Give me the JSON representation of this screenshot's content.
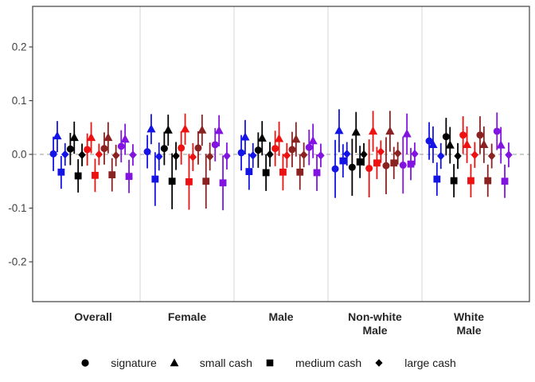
{
  "figure": {
    "background": "#ffffff",
    "panel_border_color": "#4d4d4d",
    "separator_color": "#dcdcdc",
    "zero_line_color": "#999999",
    "tick_color": "#333333",
    "axis_text_color": "#404040",
    "category_text_color": "#262626"
  },
  "legend": {
    "marker_color": "#000000",
    "items": [
      {
        "shape": "circle",
        "label": "signature"
      },
      {
        "shape": "triangle",
        "label": "small cash"
      },
      {
        "shape": "square",
        "label": "medium cash"
      },
      {
        "shape": "diamond",
        "label": "large cash"
      }
    ]
  },
  "chart_data": {
    "type": "scatter",
    "subtype": "dodged point-range (coefficient plot, no caps on error bars)",
    "title": "",
    "xlabel": "",
    "ylabel": "",
    "ylim": [
      -0.27,
      0.275
    ],
    "yticks": [
      0.2,
      0.1,
      0,
      -0.1,
      -0.2
    ],
    "zero_reference_line": 0,
    "grid": "vertical light-gray separators between categories; dashed gray horizontal line at 0",
    "legend_position": "bottom-center",
    "categories": [
      "Overall",
      "Female",
      "Male",
      "Non-white Male",
      "White Male"
    ],
    "category_label_lines": [
      [
        "Overall"
      ],
      [
        "Female"
      ],
      [
        "Male"
      ],
      [
        "Non-white",
        "Male"
      ],
      [
        "White",
        "Male"
      ]
    ],
    "shape_order": [
      "circle",
      "triangle",
      "square",
      "diamond"
    ],
    "shape_labels": {
      "circle": "signature",
      "triangle": "small cash",
      "square": "medium cash",
      "diamond": "large cash"
    },
    "color_order": [
      "#1414e6",
      "#000000",
      "#ee1111",
      "#8b2222",
      "#8214e0"
    ],
    "point_format": [
      "estimate",
      "ci_low",
      "ci_high"
    ],
    "panels": [
      {
        "category": "Overall",
        "series": [
          {
            "color": "#1414e6",
            "points": [
              [
                0.001,
                -0.031,
                0.033
              ],
              [
                0.034,
                0.004,
                0.062
              ],
              [
                -0.033,
                -0.064,
                -0.003
              ],
              [
                0.0,
                -0.021,
                0.021
              ]
            ]
          },
          {
            "color": "#000000",
            "points": [
              [
                0.01,
                -0.02,
                0.04
              ],
              [
                0.031,
                0.001,
                0.061
              ],
              [
                -0.04,
                -0.071,
                -0.009
              ],
              [
                -0.001,
                -0.022,
                0.02
              ]
            ]
          },
          {
            "color": "#ee1111",
            "points": [
              [
                0.009,
                -0.021,
                0.039
              ],
              [
                0.031,
                0.002,
                0.06
              ],
              [
                -0.039,
                -0.07,
                -0.008
              ],
              [
                0.0,
                -0.02,
                0.02
              ]
            ]
          },
          {
            "color": "#8b2222",
            "points": [
              [
                0.011,
                -0.019,
                0.041
              ],
              [
                0.031,
                0.002,
                0.06
              ],
              [
                -0.038,
                -0.069,
                -0.007
              ],
              [
                -0.002,
                -0.022,
                0.018
              ]
            ]
          },
          {
            "color": "#8214e0",
            "points": [
              [
                0.015,
                -0.015,
                0.045
              ],
              [
                0.028,
                -0.001,
                0.057
              ],
              [
                -0.041,
                -0.072,
                -0.01
              ],
              [
                -0.001,
                -0.021,
                0.019
              ]
            ]
          }
        ]
      },
      {
        "category": "Female",
        "series": [
          {
            "color": "#1414e6",
            "points": [
              [
                0.005,
                -0.026,
                0.036
              ],
              [
                0.047,
                0.019,
                0.075
              ],
              [
                -0.046,
                -0.096,
                0.004
              ],
              [
                -0.004,
                -0.03,
                0.022
              ]
            ]
          },
          {
            "color": "#000000",
            "points": [
              [
                0.011,
                -0.02,
                0.042
              ],
              [
                0.045,
                0.016,
                0.074
              ],
              [
                -0.05,
                -0.102,
                0.002
              ],
              [
                -0.003,
                -0.029,
                0.023
              ]
            ]
          },
          {
            "color": "#ee1111",
            "points": [
              [
                0.012,
                -0.019,
                0.043
              ],
              [
                0.047,
                0.018,
                0.076
              ],
              [
                -0.051,
                -0.103,
                0.001
              ],
              [
                -0.005,
                -0.031,
                0.021
              ]
            ]
          },
          {
            "color": "#8b2222",
            "points": [
              [
                0.012,
                -0.019,
                0.043
              ],
              [
                0.045,
                0.016,
                0.074
              ],
              [
                -0.05,
                -0.101,
                0.001
              ],
              [
                -0.004,
                -0.03,
                0.022
              ]
            ]
          },
          {
            "color": "#8214e0",
            "points": [
              [
                0.018,
                -0.013,
                0.049
              ],
              [
                0.044,
                0.015,
                0.073
              ],
              [
                -0.053,
                -0.104,
                -0.002
              ],
              [
                -0.003,
                -0.028,
                0.022
              ]
            ]
          }
        ]
      },
      {
        "category": "Male",
        "series": [
          {
            "color": "#1414e6",
            "points": [
              [
                0.003,
                -0.03,
                0.036
              ],
              [
                0.032,
                0.0,
                0.064
              ],
              [
                -0.032,
                -0.066,
                0.002
              ],
              [
                -0.002,
                -0.025,
                0.021
              ]
            ]
          },
          {
            "color": "#000000",
            "points": [
              [
                0.008,
                -0.025,
                0.041
              ],
              [
                0.03,
                -0.002,
                0.062
              ],
              [
                -0.034,
                -0.068,
                0.0
              ],
              [
                0.0,
                -0.023,
                0.023
              ]
            ]
          },
          {
            "color": "#ee1111",
            "points": [
              [
                0.011,
                -0.022,
                0.044
              ],
              [
                0.029,
                -0.003,
                0.061
              ],
              [
                -0.033,
                -0.067,
                0.001
              ],
              [
                -0.002,
                -0.025,
                0.021
              ]
            ]
          },
          {
            "color": "#8b2222",
            "points": [
              [
                0.009,
                -0.024,
                0.042
              ],
              [
                0.028,
                -0.004,
                0.06
              ],
              [
                -0.033,
                -0.066,
                0.0
              ],
              [
                -0.001,
                -0.024,
                0.022
              ]
            ]
          },
          {
            "color": "#8214e0",
            "points": [
              [
                0.013,
                -0.02,
                0.046
              ],
              [
                0.025,
                -0.007,
                0.057
              ],
              [
                -0.034,
                -0.068,
                0.0
              ],
              [
                -0.002,
                -0.024,
                0.02
              ]
            ]
          }
        ]
      },
      {
        "category": "Non-white Male",
        "series": [
          {
            "color": "#1414e6",
            "points": [
              [
                -0.027,
                -0.081,
                0.027
              ],
              [
                0.044,
                0.004,
                0.084
              ],
              [
                -0.012,
                -0.043,
                0.019
              ],
              [
                0.001,
                -0.021,
                0.023
              ]
            ]
          },
          {
            "color": "#000000",
            "points": [
              [
                -0.024,
                -0.077,
                0.029
              ],
              [
                0.041,
                0.003,
                0.079
              ],
              [
                -0.014,
                -0.044,
                0.016
              ],
              [
                0.0,
                -0.021,
                0.021
              ]
            ]
          },
          {
            "color": "#ee1111",
            "points": [
              [
                -0.026,
                -0.08,
                0.028
              ],
              [
                0.043,
                0.005,
                0.081
              ],
              [
                -0.016,
                -0.046,
                0.014
              ],
              [
                0.005,
                -0.016,
                0.026
              ]
            ]
          },
          {
            "color": "#8b2222",
            "points": [
              [
                -0.021,
                -0.074,
                0.032
              ],
              [
                0.043,
                0.005,
                0.081
              ],
              [
                -0.016,
                -0.046,
                0.014
              ],
              [
                0.002,
                -0.019,
                0.023
              ]
            ]
          },
          {
            "color": "#8214e0",
            "points": [
              [
                -0.02,
                -0.073,
                0.033
              ],
              [
                0.038,
                0.0,
                0.076
              ],
              [
                -0.018,
                -0.048,
                0.012
              ],
              [
                0.001,
                -0.02,
                0.022
              ]
            ]
          }
        ]
      },
      {
        "category": "White Male",
        "series": [
          {
            "color": "#1414e6",
            "points": [
              [
                0.025,
                -0.01,
                0.06
              ],
              [
                0.018,
                -0.016,
                0.052
              ],
              [
                -0.046,
                -0.077,
                -0.015
              ],
              [
                -0.003,
                -0.027,
                0.021
              ]
            ]
          },
          {
            "color": "#000000",
            "points": [
              [
                0.033,
                -0.002,
                0.068
              ],
              [
                0.017,
                -0.017,
                0.051
              ],
              [
                -0.049,
                -0.08,
                -0.018
              ],
              [
                -0.003,
                -0.027,
                0.021
              ]
            ]
          },
          {
            "color": "#ee1111",
            "points": [
              [
                0.036,
                0.001,
                0.071
              ],
              [
                0.018,
                -0.016,
                0.052
              ],
              [
                -0.049,
                -0.08,
                -0.018
              ],
              [
                -0.001,
                -0.025,
                0.023
              ]
            ]
          },
          {
            "color": "#8b2222",
            "points": [
              [
                0.036,
                0.001,
                0.071
              ],
              [
                0.018,
                -0.016,
                0.052
              ],
              [
                -0.049,
                -0.079,
                -0.019
              ],
              [
                -0.003,
                -0.026,
                0.02
              ]
            ]
          },
          {
            "color": "#8214e0",
            "points": [
              [
                0.043,
                0.008,
                0.078
              ],
              [
                0.017,
                -0.017,
                0.051
              ],
              [
                -0.05,
                -0.081,
                -0.019
              ],
              [
                -0.001,
                -0.024,
                0.022
              ]
            ]
          }
        ]
      }
    ]
  }
}
